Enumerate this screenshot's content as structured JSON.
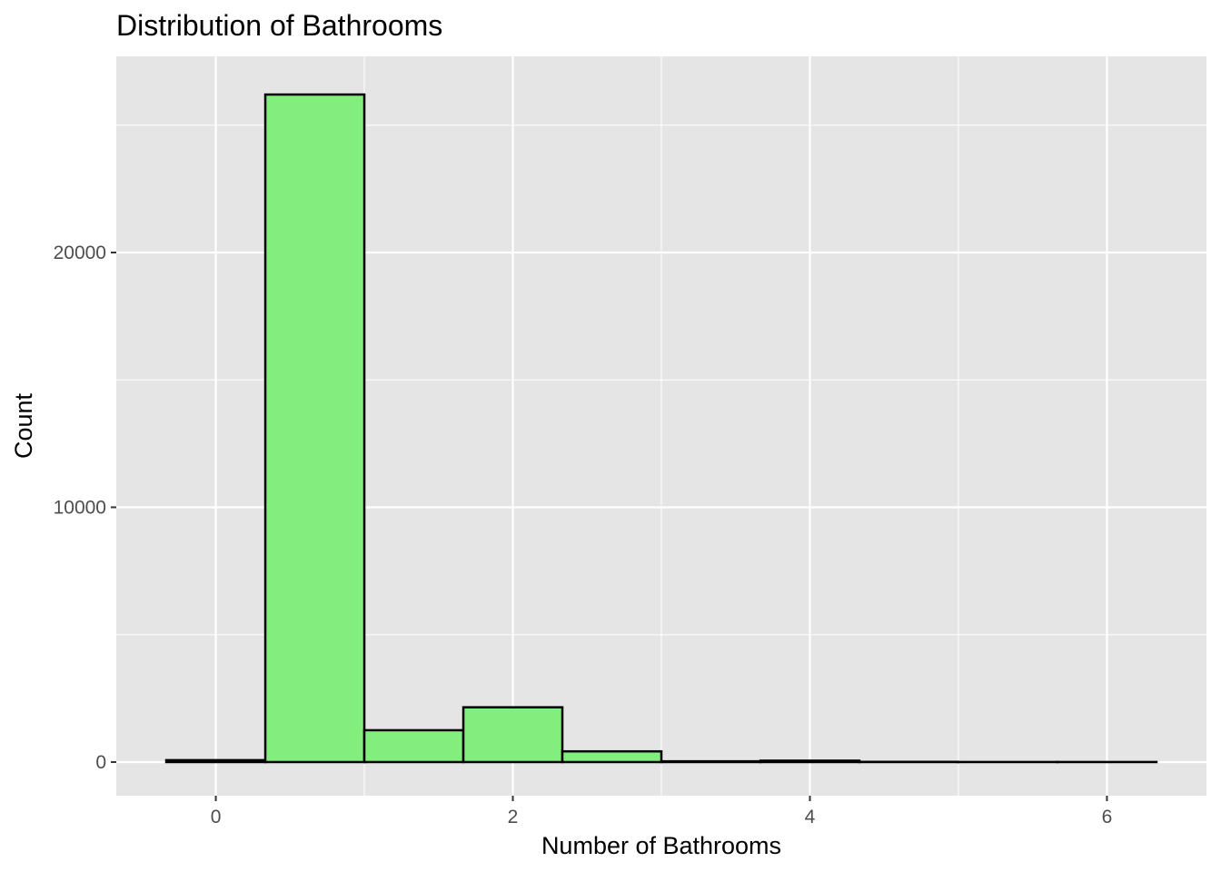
{
  "chart_data": {
    "type": "bar",
    "title": "Distribution of Bathrooms",
    "xlabel": "Number of Bathrooms",
    "ylabel": "Count",
    "xlim": [
      -0.67,
      6.67
    ],
    "ylim": [
      -1320,
      27700
    ],
    "x_ticks": [
      "0",
      "2",
      "4",
      "6"
    ],
    "x_tick_values": [
      0,
      2,
      4,
      6
    ],
    "y_ticks": [
      "0",
      "10000",
      "20000"
    ],
    "y_tick_values": [
      0,
      10000,
      20000
    ],
    "bins": [
      {
        "x0": -0.3333,
        "x1": 0.3333,
        "value": 75
      },
      {
        "x0": 0.3333,
        "x1": 1.0,
        "value": 26200
      },
      {
        "x0": 1.0,
        "x1": 1.6667,
        "value": 1250
      },
      {
        "x0": 1.6667,
        "x1": 2.3333,
        "value": 2150
      },
      {
        "x0": 2.3333,
        "x1": 3.0,
        "value": 420
      },
      {
        "x0": 3.0,
        "x1": 3.6667,
        "value": 30
      },
      {
        "x0": 3.6667,
        "x1": 4.3333,
        "value": 55
      },
      {
        "x0": 4.3333,
        "x1": 5.0,
        "value": 8
      },
      {
        "x0": 5.0,
        "x1": 5.6667,
        "value": 3
      },
      {
        "x0": 5.6667,
        "x1": 6.3333,
        "value": 3
      }
    ],
    "grid": true,
    "legend": "none",
    "colors": {
      "bar_fill": "#83ed7d",
      "bar_stroke": "#000000",
      "panel_bg": "#e5e5e5",
      "grid": "#ffffff"
    }
  }
}
